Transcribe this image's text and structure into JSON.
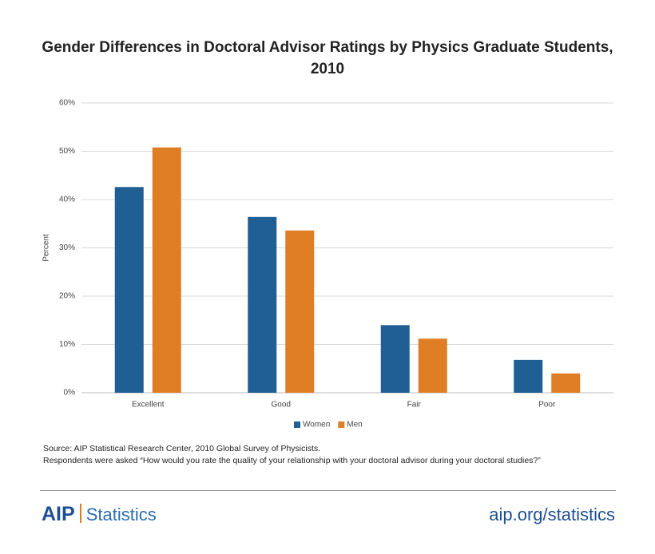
{
  "chart_data": {
    "type": "bar",
    "title": "Gender Differences in Doctoral Advisor Ratings by Physics Graduate Students, 2010",
    "ylabel": "Percent",
    "categories": [
      "Excellent",
      "Good",
      "Fair",
      "Poor"
    ],
    "series": [
      {
        "name": "Women",
        "color": "#1f5f94",
        "values": [
          42.6,
          36.4,
          14.0,
          6.8
        ]
      },
      {
        "name": "Men",
        "color": "#e07e26",
        "values": [
          50.8,
          33.6,
          11.2,
          4.0
        ]
      }
    ],
    "ylim": [
      0,
      60
    ],
    "yticks": [
      {
        "value": 0,
        "label": "0%"
      },
      {
        "value": 10,
        "label": "10%"
      },
      {
        "value": 20,
        "label": "20%"
      },
      {
        "value": 30,
        "label": "30%"
      },
      {
        "value": 40,
        "label": "40%"
      },
      {
        "value": 50,
        "label": "50%"
      },
      {
        "value": 60,
        "label": "60%"
      }
    ],
    "grid": true,
    "notes": [
      "Source: AIP Statistical Research Center, 2010 Global Survey of Physicists.",
      "Respondents were asked “How would you rate the quality of your relationship with your doctoral advisor during your doctoral studies?”"
    ]
  },
  "footer": {
    "logo": "AIP",
    "brand": "Statistics",
    "url": "aip.org/statistics"
  }
}
